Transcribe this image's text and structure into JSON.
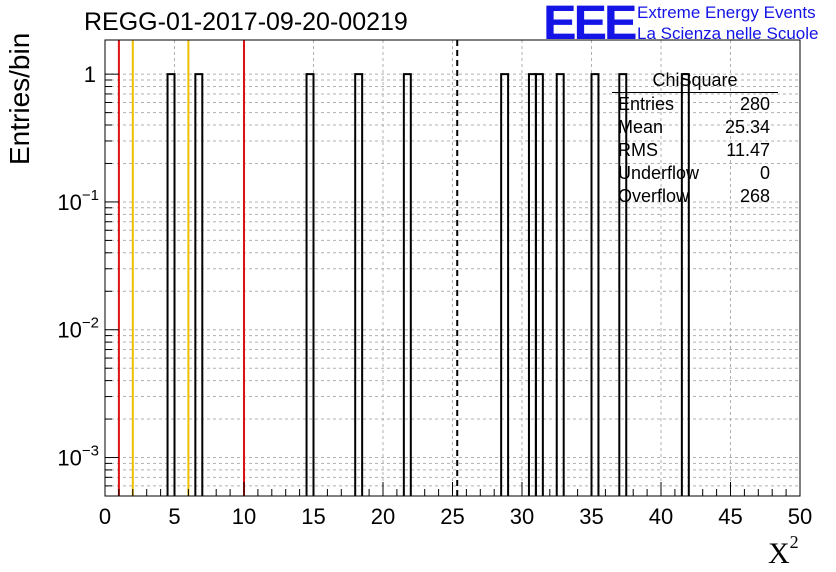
{
  "title": "REGG-01-2017-09-20-00219",
  "logo": {
    "mark": "EEE",
    "line1": "Extreme Energy Events",
    "line2": "La Scienza nelle Scuole",
    "color": "#1414e6"
  },
  "stats_box": {
    "title": "ChiSquare",
    "rows": [
      {
        "label": "Entries",
        "value": "280"
      },
      {
        "label": "Mean",
        "value": "25.34"
      },
      {
        "label": "RMS",
        "value": "11.47"
      },
      {
        "label": "Underflow",
        "value": "0"
      },
      {
        "label": "Overflow",
        "value": "268"
      }
    ]
  },
  "chart_data": {
    "type": "bar",
    "title": "REGG-01-2017-09-20-00219",
    "xlabel": "X",
    "xlabel_superscript": "2",
    "ylabel": "Entries/bin",
    "xlim": [
      0,
      50
    ],
    "ylim": [
      0.0005,
      1.85
    ],
    "yscale": "log",
    "grid": true,
    "bin_width": 0.5,
    "bins": [
      {
        "x0": 4.5,
        "x1": 5.0,
        "value": 1
      },
      {
        "x0": 6.5,
        "x1": 7.0,
        "value": 1
      },
      {
        "x0": 14.5,
        "x1": 15.0,
        "value": 1
      },
      {
        "x0": 18.0,
        "x1": 18.5,
        "value": 1
      },
      {
        "x0": 21.5,
        "x1": 22.0,
        "value": 1
      },
      {
        "x0": 28.5,
        "x1": 29.0,
        "value": 1
      },
      {
        "x0": 30.5,
        "x1": 31.0,
        "value": 1
      },
      {
        "x0": 31.0,
        "x1": 31.5,
        "value": 1
      },
      {
        "x0": 32.5,
        "x1": 33.0,
        "value": 1
      },
      {
        "x0": 35.0,
        "x1": 35.5,
        "value": 1
      },
      {
        "x0": 37.0,
        "x1": 37.5,
        "value": 1
      },
      {
        "x0": 41.5,
        "x1": 42.0,
        "value": 1
      }
    ],
    "xticks": [
      "0",
      "5",
      "10",
      "15",
      "20",
      "25",
      "30",
      "35",
      "40",
      "45",
      "50"
    ],
    "yticks": [
      {
        "value": 1,
        "label": "1"
      },
      {
        "value": 0.1,
        "label": "10",
        "exp": "−1"
      },
      {
        "value": 0.01,
        "label": "10",
        "exp": "−2"
      },
      {
        "value": 0.001,
        "label": "10",
        "exp": "−3"
      }
    ],
    "reference_lines": [
      {
        "x": 1,
        "color": "#dd1111",
        "style": "solid"
      },
      {
        "x": 2,
        "color": "#f0c000",
        "style": "solid"
      },
      {
        "x": 6,
        "color": "#f0c000",
        "style": "solid"
      },
      {
        "x": 10,
        "color": "#dd1111",
        "style": "solid"
      },
      {
        "x": 25.34,
        "color": "#000000",
        "style": "dashed"
      }
    ]
  }
}
